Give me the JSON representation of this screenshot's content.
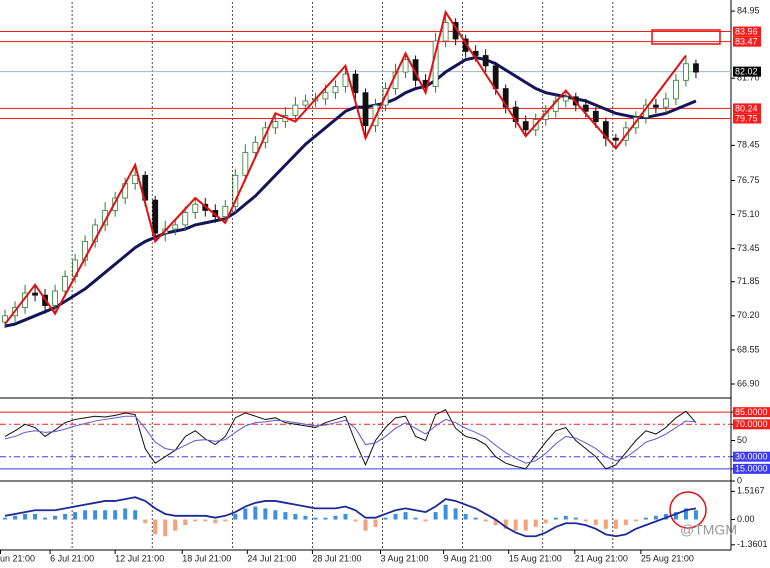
{
  "chart_data": [
    {
      "type": "candlestick",
      "xlim": [
        -0.5,
        72.5
      ],
      "ylim": [
        66.27,
        85.39
      ],
      "yticks": [
        {
          "value": 84.95,
          "label": "84.95"
        },
        {
          "value": 81.7,
          "label": "81.70"
        },
        {
          "value": 78.45,
          "label": "78.45"
        },
        {
          "value": 76.75,
          "label": "76.75"
        },
        {
          "value": 75.1,
          "label": "75.10"
        },
        {
          "value": 73.45,
          "label": "73.45"
        },
        {
          "value": 71.85,
          "label": "71.85"
        },
        {
          "value": 70.2,
          "label": "70.20"
        },
        {
          "value": 68.55,
          "label": "68.55"
        },
        {
          "value": 66.9,
          "label": "66.90"
        }
      ],
      "xticks": [
        {
          "value": -0.5,
          "label": "un 21:00"
        },
        {
          "value": 4.5,
          "label": "6 Jul 21:00"
        },
        {
          "value": 11,
          "label": "12 Jul 21:00"
        },
        {
          "value": 17.7,
          "label": "18 Jul 21:00"
        },
        {
          "value": 24.2,
          "label": "24 Jul 21:00"
        },
        {
          "value": 30.7,
          "label": "28 Jul 21:00"
        },
        {
          "value": 37.5,
          "label": "3 Aug 21:00"
        },
        {
          "value": 43.8,
          "label": "9 Aug 21:00"
        },
        {
          "value": 50.3,
          "label": "15 Aug 21:00"
        },
        {
          "value": 56.9,
          "label": "21 Aug 21:00"
        },
        {
          "value": 63.5,
          "label": "25 Aug 21:00"
        }
      ],
      "xgrid": [
        6.7,
        14.7,
        22.7,
        30.7,
        37.7,
        45.7,
        53.7,
        60.7
      ],
      "up_color": "#2f7d32",
      "down_color": "#111111",
      "open": [
        69.9,
        70.2,
        70.6,
        71.3,
        71.2,
        70.7,
        71.4,
        72.1,
        72.9,
        73.8,
        74.6,
        75.3,
        75.9,
        76.6,
        77.0,
        75.8,
        74.2,
        74.4,
        74.6,
        75.2,
        75.6,
        75.3,
        75.0,
        75.5,
        77.0,
        78.1,
        78.6,
        79.3,
        79.6,
        79.9,
        80.4,
        80.6,
        80.7,
        81.0,
        81.3,
        81.9,
        81.0,
        79.4,
        80.4,
        81.2,
        82.0,
        82.6,
        81.6,
        81.3,
        83.5,
        84.4,
        83.6,
        83.0,
        82.8,
        82.3,
        81.2,
        80.3,
        79.6,
        79.2,
        79.7,
        80.1,
        80.6,
        80.8,
        80.4,
        80.1,
        79.6,
        78.8,
        78.7,
        79.3,
        79.8,
        80.4,
        80.3,
        80.7,
        81.6,
        82.4
      ],
      "high": [
        70.5,
        70.9,
        71.7,
        71.6,
        71.5,
        71.7,
        72.4,
        73.2,
        74.1,
        74.9,
        75.7,
        76.2,
        76.9,
        77.5,
        77.2,
        76.0,
        74.8,
        74.9,
        75.5,
        75.9,
        75.9,
        75.6,
        75.8,
        77.3,
        78.5,
        78.9,
        79.6,
        80.0,
        80.3,
        80.8,
        80.9,
        81.0,
        81.4,
        81.6,
        82.3,
        82.1,
        81.2,
        80.7,
        81.5,
        82.4,
        82.9,
        82.8,
        81.9,
        83.9,
        84.9,
        84.6,
        83.8,
        83.3,
        83.1,
        82.5,
        81.4,
        80.6,
        79.9,
        80.0,
        80.4,
        80.9,
        81.1,
        81.0,
        80.7,
        80.3,
        79.8,
        79.0,
        79.6,
        80.1,
        80.7,
        80.7,
        81.0,
        81.9,
        82.8,
        82.6
      ],
      "low": [
        69.6,
        69.9,
        70.3,
        70.9,
        70.3,
        70.4,
        71.1,
        71.8,
        72.6,
        73.5,
        74.3,
        75.0,
        75.6,
        76.3,
        75.5,
        73.8,
        73.8,
        74.1,
        74.3,
        74.9,
        75.0,
        74.7,
        74.7,
        75.2,
        76.7,
        77.8,
        78.3,
        79.0,
        79.3,
        79.6,
        80.1,
        80.3,
        80.4,
        80.7,
        81.0,
        80.7,
        78.8,
        79.1,
        80.1,
        80.9,
        81.7,
        81.3,
        81.0,
        81.0,
        83.2,
        83.3,
        82.7,
        82.5,
        82.0,
        80.9,
        80.0,
        79.3,
        78.9,
        78.9,
        79.4,
        79.8,
        80.3,
        80.1,
        79.8,
        79.3,
        78.4,
        78.3,
        78.4,
        79.0,
        79.5,
        80.0,
        80.0,
        80.4,
        81.3,
        81.7
      ],
      "close": [
        70.2,
        70.6,
        71.3,
        71.2,
        70.7,
        71.4,
        72.1,
        72.9,
        73.8,
        74.6,
        75.3,
        75.9,
        76.6,
        77.0,
        75.8,
        74.2,
        74.4,
        74.6,
        75.2,
        75.6,
        75.3,
        75.0,
        75.5,
        77.0,
        78.1,
        78.6,
        79.3,
        79.6,
        79.9,
        80.4,
        80.6,
        80.7,
        81.0,
        81.3,
        81.9,
        81.0,
        79.4,
        80.4,
        81.2,
        82.0,
        82.6,
        81.6,
        81.3,
        83.5,
        84.4,
        83.6,
        83.0,
        82.8,
        82.3,
        81.2,
        80.3,
        79.6,
        79.2,
        79.7,
        80.1,
        80.6,
        80.8,
        80.4,
        80.1,
        79.6,
        78.8,
        78.7,
        79.3,
        79.8,
        80.4,
        80.3,
        80.7,
        81.6,
        82.4,
        82.0
      ],
      "ma": {
        "color": "#14145a",
        "values": [
          69.7,
          69.8,
          70.0,
          70.2,
          70.4,
          70.6,
          70.9,
          71.2,
          71.5,
          71.9,
          72.3,
          72.7,
          73.1,
          73.5,
          73.8,
          74.0,
          74.2,
          74.3,
          74.4,
          74.6,
          74.7,
          74.8,
          74.9,
          75.2,
          75.6,
          76.0,
          76.5,
          77.0,
          77.5,
          78.0,
          78.5,
          78.9,
          79.3,
          79.7,
          80.1,
          80.3,
          80.3,
          80.4,
          80.5,
          80.7,
          81.0,
          81.2,
          81.3,
          81.6,
          82.0,
          82.3,
          82.6,
          82.7,
          82.6,
          82.4,
          82.1,
          81.8,
          81.5,
          81.2,
          81.0,
          80.9,
          80.8,
          80.7,
          80.6,
          80.4,
          80.2,
          80.0,
          79.9,
          79.8,
          79.8,
          79.9,
          80.0,
          80.2,
          80.4,
          80.6
        ]
      },
      "zigzag": {
        "color": "#e01010",
        "x": [
          0,
          3,
          5,
          13,
          15,
          19,
          22,
          27,
          29,
          34,
          36,
          40,
          42,
          44,
          52,
          56,
          61,
          68
        ],
        "y": [
          69.8,
          71.7,
          70.3,
          77.5,
          73.8,
          75.9,
          74.7,
          80.0,
          79.6,
          82.3,
          78.8,
          82.9,
          81.0,
          84.9,
          78.9,
          81.1,
          78.3,
          82.8
        ]
      },
      "level_color": "#ff1a1a",
      "levels": [
        {
          "value": 83.96,
          "label": "83.96"
        },
        {
          "value": 83.47,
          "label": "83.47"
        },
        {
          "value": 80.24,
          "label": "80.24"
        },
        {
          "value": 79.75,
          "label": "79.75"
        }
      ],
      "last_price": {
        "value": 82.02,
        "label": "82.02",
        "color": "#9fb4cc"
      }
    },
    {
      "type": "line",
      "xlim": [
        -0.5,
        72.5
      ],
      "ylim": [
        0,
        100
      ],
      "yticks": [
        {
          "value": 85,
          "label": "85.0000",
          "color": "#ff1a1a"
        },
        {
          "value": 70,
          "label": "70.0000",
          "color": "#ff1a1a",
          "dashed": true
        },
        50,
        {
          "value": 30,
          "label": "30.0000",
          "color": "#3a3aff",
          "dashed": true
        },
        {
          "value": 15,
          "label": "15.0000",
          "color": "#3a3aff"
        },
        0
      ],
      "lines": [
        {
          "color": "#111111",
          "values": [
            55,
            62,
            70,
            66,
            55,
            63,
            72,
            76,
            78,
            80,
            79,
            81,
            84,
            82,
            40,
            22,
            30,
            38,
            55,
            62,
            52,
            45,
            55,
            78,
            84,
            80,
            76,
            78,
            72,
            70,
            68,
            66,
            72,
            76,
            80,
            48,
            20,
            50,
            66,
            78,
            80,
            55,
            50,
            82,
            88,
            65,
            55,
            52,
            45,
            30,
            22,
            18,
            15,
            32,
            48,
            62,
            66,
            50,
            40,
            30,
            15,
            20,
            35,
            50,
            62,
            58,
            66,
            78,
            86,
            72
          ]
        },
        {
          "color": "#5b5bd6",
          "values": [
            52,
            55,
            60,
            62,
            60,
            61,
            64,
            68,
            71,
            74,
            76,
            78,
            80,
            80,
            65,
            48,
            40,
            38,
            44,
            50,
            51,
            49,
            51,
            60,
            68,
            72,
            73,
            75,
            74,
            72,
            70,
            68,
            69,
            72,
            75,
            65,
            45,
            47,
            55,
            65,
            72,
            65,
            58,
            68,
            76,
            72,
            65,
            60,
            54,
            44,
            35,
            28,
            22,
            25,
            34,
            46,
            55,
            53,
            47,
            40,
            30,
            25,
            29,
            38,
            48,
            52,
            58,
            66,
            74,
            73
          ]
        }
      ]
    },
    {
      "type": "bar",
      "xlim": [
        -0.5,
        72.5
      ],
      "ylim": [
        -1.64,
        2.02
      ],
      "yticks": [
        1.5167,
        {
          "value": 0,
          "label": "0.00"
        },
        -1.3601
      ],
      "pos_color": "#3d8fe0",
      "neg_color": "#f4a27a",
      "values": [
        0.1,
        0.2,
        0.3,
        0.3,
        0.1,
        0.2,
        0.3,
        0.4,
        0.5,
        0.5,
        0.5,
        0.5,
        0.6,
        0.5,
        -0.2,
        -0.8,
        -0.9,
        -0.6,
        -0.3,
        -0.1,
        -0.1,
        -0.2,
        -0.1,
        0.3,
        0.6,
        0.7,
        0.6,
        0.5,
        0.4,
        0.3,
        0.2,
        0.1,
        0.1,
        0.2,
        0.3,
        -0.1,
        -0.6,
        -0.4,
        0.1,
        0.3,
        0.4,
        0.1,
        -0.1,
        0.4,
        0.8,
        0.6,
        0.3,
        0.1,
        -0.1,
        -0.3,
        -0.5,
        -0.6,
        -0.6,
        -0.4,
        -0.2,
        0.1,
        0.2,
        0.1,
        -0.1,
        -0.3,
        -0.5,
        -0.5,
        -0.3,
        -0.1,
        0.1,
        0.2,
        0.3,
        0.4,
        0.6,
        0.5
      ],
      "line": {
        "color": "#1a2a9a",
        "values": [
          0.2,
          0.3,
          0.4,
          0.5,
          0.5,
          0.5,
          0.6,
          0.7,
          0.8,
          0.9,
          1.0,
          1.0,
          1.1,
          1.2,
          1.0,
          0.6,
          0.3,
          0.2,
          0.2,
          0.2,
          0.2,
          0.1,
          0.2,
          0.4,
          0.7,
          0.9,
          1.0,
          1.0,
          0.9,
          0.8,
          0.7,
          0.6,
          0.6,
          0.6,
          0.7,
          0.5,
          0.1,
          0.1,
          0.3,
          0.5,
          0.6,
          0.5,
          0.4,
          0.7,
          1.1,
          1.0,
          0.8,
          0.6,
          0.3,
          0.0,
          -0.4,
          -0.7,
          -0.9,
          -0.9,
          -0.7,
          -0.4,
          -0.2,
          -0.2,
          -0.3,
          -0.5,
          -0.8,
          -0.9,
          -0.8,
          -0.5,
          -0.3,
          -0.1,
          0.1,
          0.3,
          0.5,
          0.6
        ]
      }
    }
  ],
  "watermark": "@TMGM"
}
